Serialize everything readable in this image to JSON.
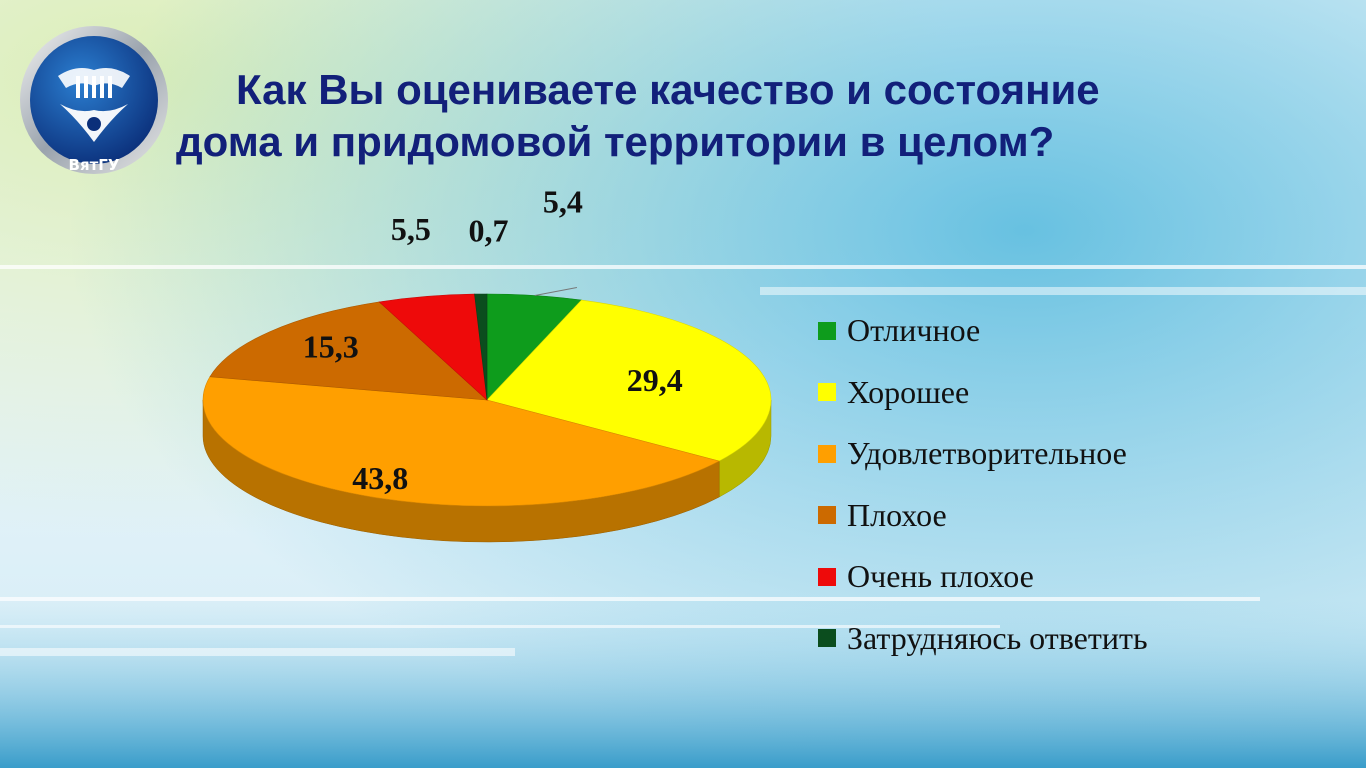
{
  "slide": {
    "title_line1": "Как Вы оцениваете качество и состояние",
    "title_line2": "дома и придомовой территории в целом?",
    "logo_text": "ВятГУ"
  },
  "chart_data": {
    "type": "pie",
    "title": "",
    "categories": [
      "Отличное",
      "Хорошее",
      "Удовлетворительное",
      "Плохое",
      "Очень плохое",
      "Затрудняюсь ответить"
    ],
    "values": [
      5.4,
      29.4,
      43.8,
      15.3,
      5.5,
      0.7
    ],
    "value_labels": [
      "5,4",
      "29,4",
      "43,8",
      "15,3",
      "5,5",
      "0,7"
    ],
    "colors": [
      "#0e9c1c",
      "#ffff00",
      "#ff9f00",
      "#cc6a00",
      "#ee0a0a",
      "#0b4d1e"
    ],
    "legend_position": "right",
    "style": "3d-pie"
  }
}
